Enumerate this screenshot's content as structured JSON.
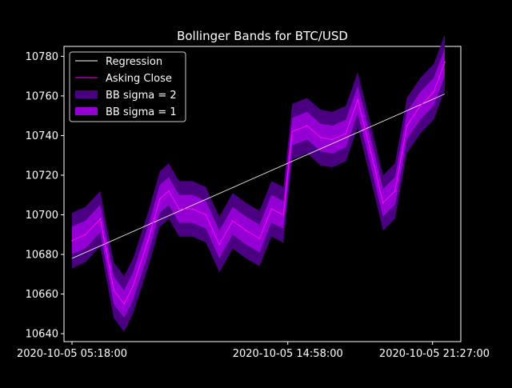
{
  "chart_data": {
    "type": "line",
    "title": "Bollinger Bands for BTC/USD",
    "xlabel": "",
    "ylabel": "",
    "x_ticks": [
      "2020-10-05 05:18:00",
      "2020-10-05 14:58:00",
      "2020-10-05 21:27:00"
    ],
    "y_ticks": [
      10640,
      10660,
      10680,
      10700,
      10720,
      10740,
      10760,
      10780
    ],
    "ylim": [
      10636,
      10785
    ],
    "x_start": "2020-10-05 05:18:00",
    "x_end": "2020-10-05 22:00:00",
    "grid": false,
    "legend_position": "top-left",
    "legend": [
      {
        "label": "Regression",
        "kind": "line",
        "color": "#ffffff"
      },
      {
        "label": "Asking Close",
        "kind": "line",
        "color": "#ff00ff"
      },
      {
        "label": "BB sigma = 2",
        "kind": "patch",
        "color": "#4b0082"
      },
      {
        "label": "BB sigma = 1",
        "kind": "patch",
        "color": "#9400d3"
      }
    ],
    "regression": {
      "name": "Regression",
      "start": 10678,
      "end": 10761
    },
    "series": [
      {
        "name": "Asking Close",
        "color": "#ff00ff",
        "x": [
          "2020-10-05 05:18:00",
          "2020-10-05 05:54:00",
          "2020-10-05 06:34:00",
          "2020-10-05 07:10:00",
          "2020-10-05 07:38:00",
          "2020-10-05 08:02:00",
          "2020-10-05 08:42:00",
          "2020-10-05 09:14:00",
          "2020-10-05 09:38:00",
          "2020-10-05 10:06:00",
          "2020-10-05 10:42:00",
          "2020-10-05 11:18:00",
          "2020-10-05 11:54:00",
          "2020-10-05 12:30:00",
          "2020-10-05 13:06:00",
          "2020-10-05 13:42:00",
          "2020-10-05 14:14:00",
          "2020-10-05 14:46:00",
          "2020-10-05 15:10:00",
          "2020-10-05 15:50:00",
          "2020-10-05 16:26:00",
          "2020-10-05 16:58:00",
          "2020-10-05 17:34:00",
          "2020-10-05 18:06:00",
          "2020-10-05 18:42:00",
          "2020-10-05 19:14:00",
          "2020-10-05 19:46:00",
          "2020-10-05 20:18:00",
          "2020-10-05 20:54:00",
          "2020-10-05 21:30:00",
          "2020-10-05 22:00:00"
        ],
        "values": [
          10687,
          10690,
          10698,
          10662,
          10655,
          10664,
          10687,
          10708,
          10712,
          10703,
          10703,
          10700,
          10685,
          10697,
          10692,
          10688,
          10703,
          10700,
          10742,
          10745,
          10739,
          10738,
          10741,
          10758,
          10731,
          10706,
          10712,
          10745,
          10755,
          10762,
          10777
        ]
      }
    ],
    "bands": [
      {
        "name": "BB sigma = 2",
        "color": "#4b0082",
        "offset": 14
      },
      {
        "name": "BB sigma = 1",
        "color": "#9400d3",
        "offset": 7
      }
    ]
  }
}
